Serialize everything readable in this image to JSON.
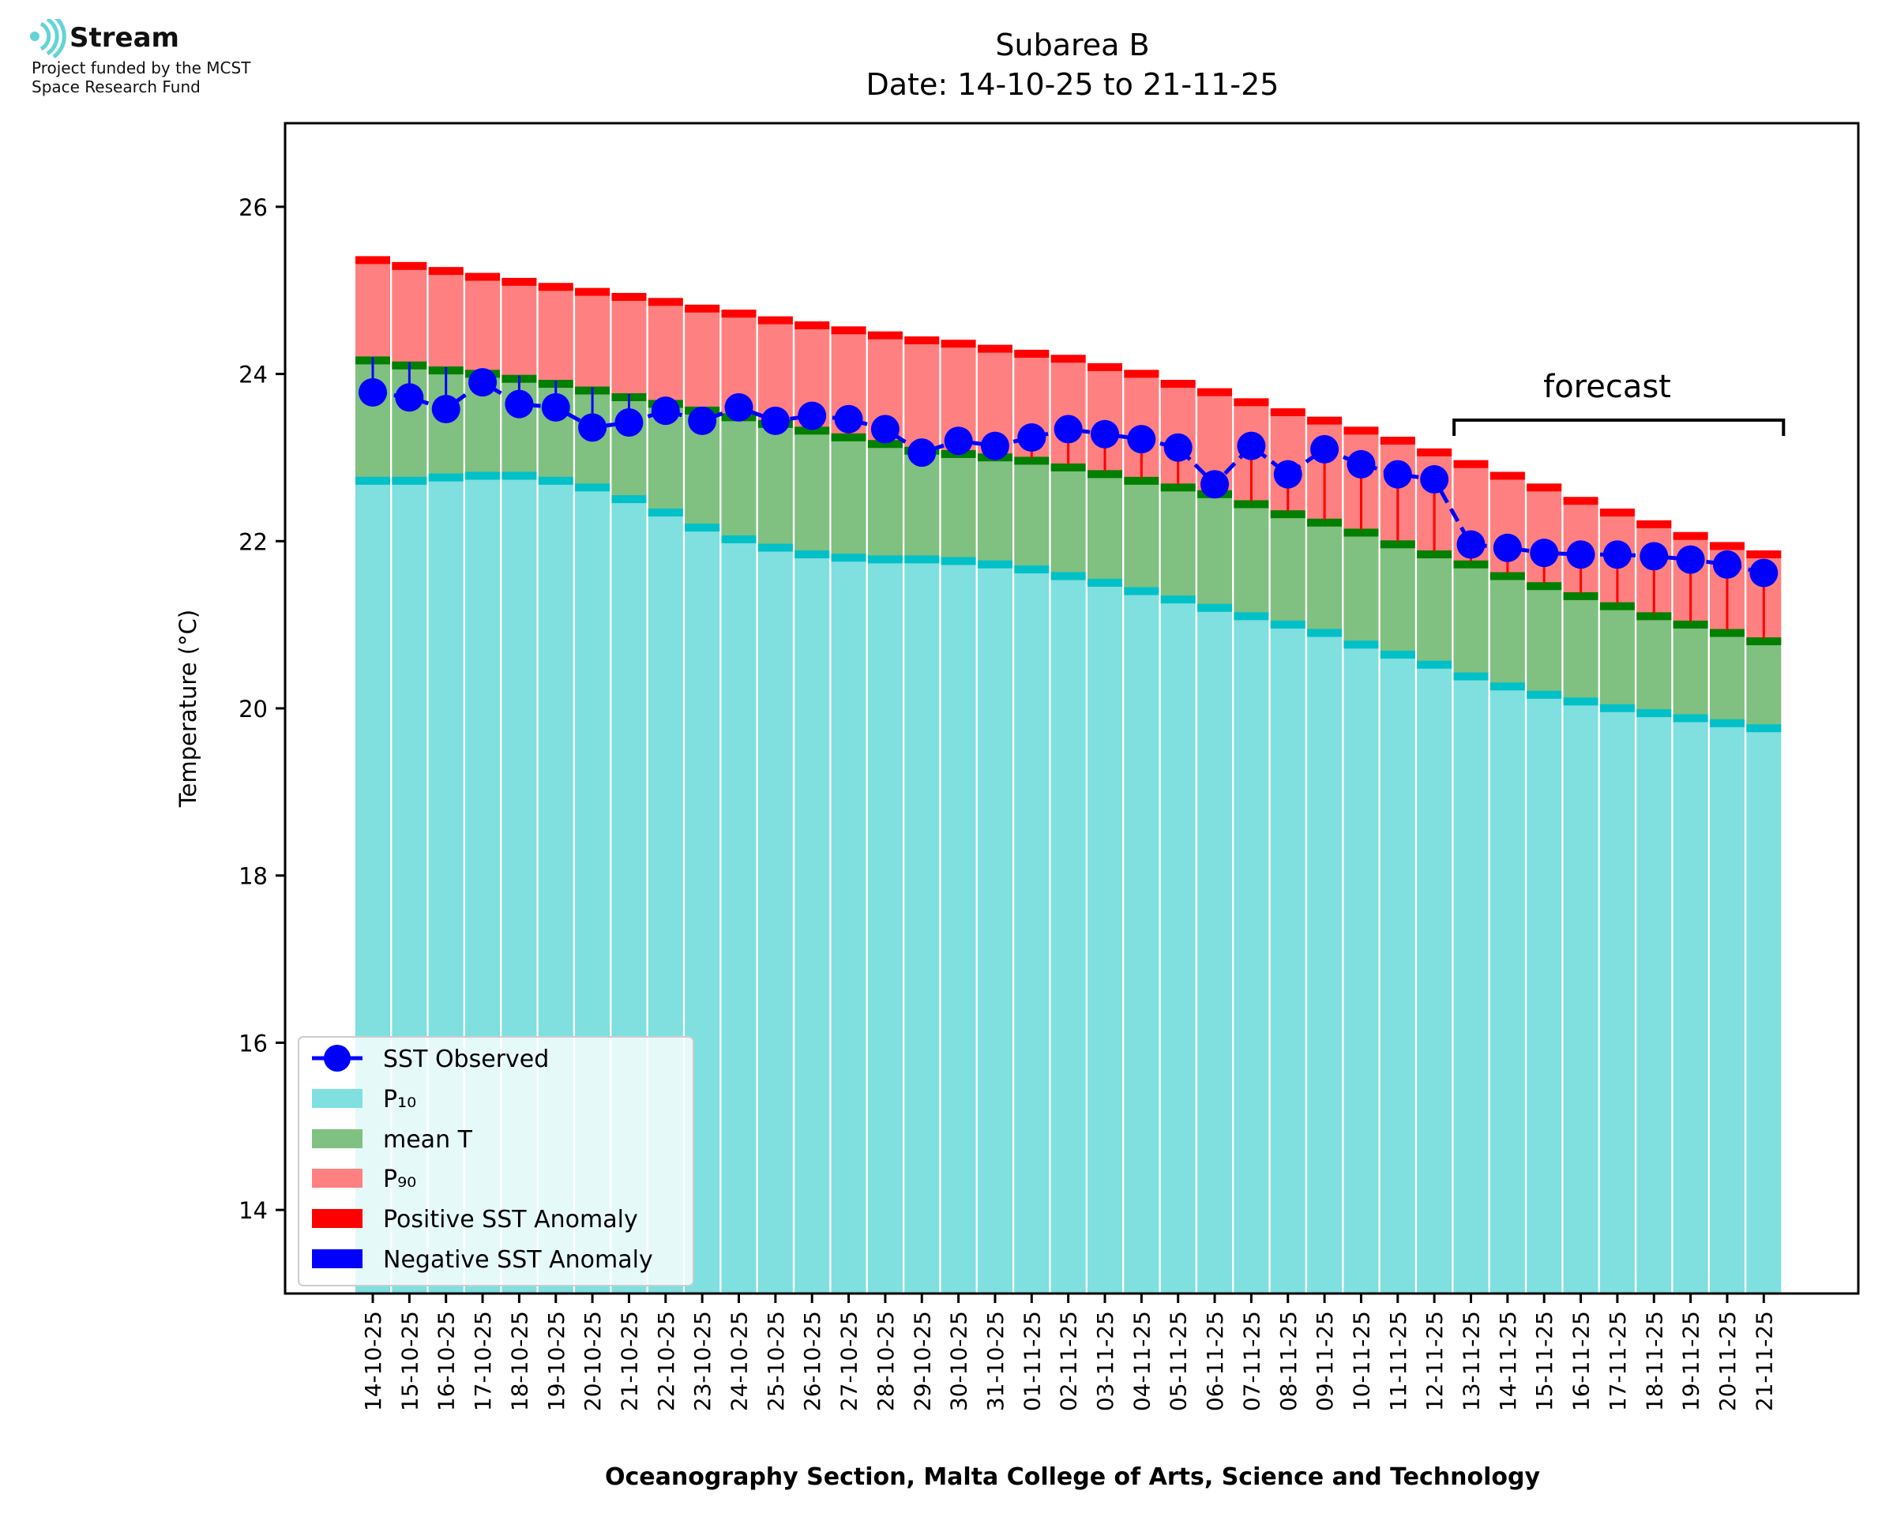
{
  "branding": {
    "name": "Stream",
    "line1": "Project funded by the MCST",
    "line2": "Space Research Fund"
  },
  "colors": {
    "p10": "#80dfdf",
    "p10_edge": "#00c0c8",
    "mean": "#80c080",
    "mean_edge": "#007f00",
    "p90": "#ff8080",
    "p90_edge": "#ff0000",
    "observed": "#0000ff",
    "pos_anomaly": "#ff0000",
    "neg_anomaly": "#0000ff"
  },
  "chart_data": {
    "type": "bar",
    "title": "Subarea B",
    "subtitle": "Date: 14-10-25 to 21-11-25",
    "xlabel": "Oceanography Section, Malta College of Arts, Science and Technology",
    "ylabel": "Temperature (°C)",
    "ylim": [
      13,
      27
    ],
    "yticks": [
      14,
      16,
      18,
      20,
      22,
      24,
      26
    ],
    "grid": false,
    "legend_position": "bottom-left",
    "annotation": "forecast",
    "forecast_range": [
      "12-11-25",
      "21-11-25"
    ],
    "categories": [
      "14-10-25",
      "15-10-25",
      "16-10-25",
      "17-10-25",
      "18-10-25",
      "19-10-25",
      "20-10-25",
      "21-10-25",
      "22-10-25",
      "23-10-25",
      "24-10-25",
      "25-10-25",
      "26-10-25",
      "27-10-25",
      "28-10-25",
      "29-10-25",
      "30-10-25",
      "31-10-25",
      "01-11-25",
      "02-11-25",
      "03-11-25",
      "04-11-25",
      "05-11-25",
      "06-11-25",
      "07-11-25",
      "08-11-25",
      "09-11-25",
      "10-11-25",
      "11-11-25",
      "12-11-25",
      "13-11-25",
      "14-11-25",
      "15-11-25",
      "16-11-25",
      "17-11-25",
      "18-11-25",
      "19-11-25",
      "20-11-25",
      "21-11-25"
    ],
    "series": [
      {
        "name": "SST Observed",
        "values": [
          23.78,
          23.72,
          23.58,
          23.9,
          23.64,
          23.6,
          23.36,
          23.42,
          23.56,
          23.44,
          23.6,
          23.44,
          23.5,
          23.46,
          23.34,
          23.06,
          23.2,
          23.14,
          23.24,
          23.34,
          23.28,
          23.22,
          23.12,
          22.68,
          23.14,
          22.8,
          23.1,
          22.92,
          22.8,
          22.74,
          21.96,
          21.92,
          21.86,
          21.84,
          21.84,
          21.82,
          21.78,
          21.72,
          21.62
        ]
      },
      {
        "name": "P₁₀",
        "values": [
          22.76,
          22.76,
          22.8,
          22.82,
          22.82,
          22.76,
          22.68,
          22.54,
          22.38,
          22.2,
          22.06,
          21.96,
          21.88,
          21.84,
          21.82,
          21.82,
          21.8,
          21.76,
          21.7,
          21.62,
          21.54,
          21.44,
          21.34,
          21.24,
          21.14,
          21.04,
          20.94,
          20.8,
          20.68,
          20.56,
          20.42,
          20.3,
          20.2,
          20.12,
          20.04,
          19.98,
          19.92,
          19.86,
          19.8
        ]
      },
      {
        "name": "mean T",
        "values": [
          24.2,
          24.14,
          24.08,
          24.04,
          23.98,
          23.92,
          23.84,
          23.76,
          23.68,
          23.6,
          23.52,
          23.44,
          23.36,
          23.28,
          23.2,
          23.12,
          23.08,
          23.04,
          23.0,
          22.92,
          22.84,
          22.76,
          22.68,
          22.6,
          22.48,
          22.36,
          22.26,
          22.14,
          22.0,
          21.88,
          21.76,
          21.62,
          21.5,
          21.38,
          21.26,
          21.14,
          21.04,
          20.94,
          20.84
        ]
      },
      {
        "name": "P₉₀",
        "values": [
          25.4,
          25.33,
          25.27,
          25.2,
          25.14,
          25.08,
          25.02,
          24.96,
          24.9,
          24.82,
          24.76,
          24.68,
          24.62,
          24.56,
          24.5,
          24.44,
          24.4,
          24.34,
          24.28,
          24.22,
          24.12,
          24.04,
          23.92,
          23.82,
          23.7,
          23.58,
          23.48,
          23.36,
          23.24,
          23.1,
          22.96,
          22.82,
          22.68,
          22.52,
          22.38,
          22.24,
          22.1,
          21.98,
          21.88
        ]
      }
    ],
    "legend": [
      "SST Observed",
      "P₁₀",
      "mean T",
      "P₉₀",
      "Positive SST Anomaly",
      "Negative SST Anomaly"
    ]
  }
}
